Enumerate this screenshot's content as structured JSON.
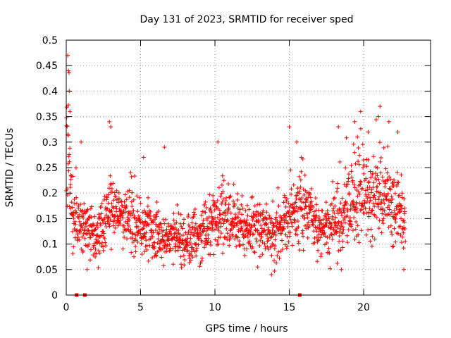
{
  "chart_data": {
    "type": "scatter",
    "title": "Day 131 of 2023, SRMTID for receiver sped",
    "xlabel": "GPS time / hours",
    "ylabel": "SRMTID / TECUs",
    "xlim": [
      0,
      24.5
    ],
    "ylim": [
      0,
      0.5
    ],
    "xticks": [
      0,
      5,
      10,
      15,
      20
    ],
    "xtick_labels": [
      "0",
      "5",
      "10",
      "15",
      "20"
    ],
    "yticks": [
      0,
      0.05,
      0.1,
      0.15,
      0.2,
      0.25,
      0.3,
      0.35,
      0.4,
      0.45,
      0.5
    ],
    "ytick_labels": [
      "0",
      "0.05",
      "0.1",
      "0.15",
      "0.2",
      "0.25",
      "0.3",
      "0.35",
      "0.4",
      "0.45",
      "0.5"
    ],
    "grid": true,
    "marker": "plus",
    "color": "#ff0000",
    "zero_markers": {
      "marker": "square",
      "x": [
        0.7,
        1.25,
        15.7
      ],
      "y": [
        0,
        0,
        0
      ]
    },
    "series": [
      {
        "name": "SRMTID",
        "trend": {
          "x": [
            0,
            0.15,
            0.3,
            0.5,
            0.8,
            1.2,
            1.6,
            2.0,
            2.5,
            3.0,
            3.5,
            4.0,
            4.5,
            5.0,
            5.5,
            6.0,
            6.5,
            7.0,
            7.5,
            8.0,
            8.5,
            9.0,
            9.5,
            10.0,
            10.5,
            11.0,
            11.5,
            12.0,
            12.5,
            13.0,
            13.5,
            14.0,
            14.5,
            15.0,
            15.5,
            16.0,
            16.5,
            17.0,
            17.5,
            18.0,
            18.5,
            19.0,
            19.5,
            20.0,
            20.5,
            21.0,
            21.5,
            22.0,
            22.5,
            22.8
          ],
          "center": [
            0.33,
            0.26,
            0.19,
            0.15,
            0.14,
            0.14,
            0.12,
            0.11,
            0.14,
            0.17,
            0.16,
            0.15,
            0.14,
            0.13,
            0.13,
            0.12,
            0.11,
            0.11,
            0.11,
            0.1,
            0.11,
            0.12,
            0.13,
            0.15,
            0.16,
            0.15,
            0.14,
            0.13,
            0.13,
            0.14,
            0.13,
            0.12,
            0.13,
            0.15,
            0.16,
            0.17,
            0.15,
            0.13,
            0.13,
            0.14,
            0.15,
            0.17,
            0.18,
            0.19,
            0.19,
            0.2,
            0.19,
            0.18,
            0.16,
            0.14
          ],
          "spread": [
            0.12,
            0.1,
            0.07,
            0.05,
            0.05,
            0.05,
            0.04,
            0.04,
            0.05,
            0.06,
            0.05,
            0.05,
            0.05,
            0.05,
            0.05,
            0.05,
            0.04,
            0.04,
            0.04,
            0.04,
            0.04,
            0.04,
            0.05,
            0.06,
            0.06,
            0.05,
            0.05,
            0.05,
            0.05,
            0.05,
            0.05,
            0.05,
            0.05,
            0.06,
            0.06,
            0.06,
            0.05,
            0.05,
            0.05,
            0.06,
            0.06,
            0.07,
            0.07,
            0.07,
            0.07,
            0.07,
            0.07,
            0.07,
            0.06,
            0.05
          ]
        },
        "peaks": [
          {
            "x": 0.1,
            "y": 0.47
          },
          {
            "x": 0.15,
            "y": 0.44
          },
          {
            "x": 0.2,
            "y": 0.4
          },
          {
            "x": 0.25,
            "y": 0.36
          },
          {
            "x": 1.0,
            "y": 0.3
          },
          {
            "x": 2.9,
            "y": 0.34
          },
          {
            "x": 3.0,
            "y": 0.33
          },
          {
            "x": 5.2,
            "y": 0.27
          },
          {
            "x": 6.6,
            "y": 0.29
          },
          {
            "x": 10.2,
            "y": 0.3
          },
          {
            "x": 15.0,
            "y": 0.33
          },
          {
            "x": 15.5,
            "y": 0.3
          },
          {
            "x": 18.3,
            "y": 0.33
          },
          {
            "x": 19.4,
            "y": 0.34
          },
          {
            "x": 19.8,
            "y": 0.36
          },
          {
            "x": 20.3,
            "y": 0.32
          },
          {
            "x": 21.0,
            "y": 0.35
          },
          {
            "x": 21.1,
            "y": 0.37
          },
          {
            "x": 21.7,
            "y": 0.34
          },
          {
            "x": 22.3,
            "y": 0.32
          },
          {
            "x": 22.7,
            "y": 0.05
          },
          {
            "x": 1.4,
            "y": 0.05
          },
          {
            "x": 13.8,
            "y": 0.04
          },
          {
            "x": 18.5,
            "y": 0.05
          }
        ],
        "x_range": [
          0,
          22.8
        ],
        "point_count": 1700
      }
    ]
  }
}
